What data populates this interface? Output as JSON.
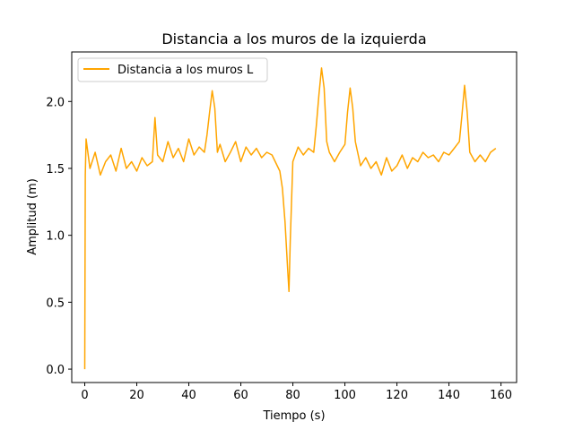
{
  "chart_data": {
    "type": "line",
    "title": "Distancia a los muros de la izquierda",
    "xlabel": "Tiempo (s)",
    "ylabel": "Amplitud (m)",
    "xlim": [
      -5,
      166
    ],
    "ylim": [
      -0.1,
      2.37
    ],
    "xticks": [
      0,
      20,
      40,
      60,
      80,
      100,
      120,
      140,
      160
    ],
    "yticks": [
      0.0,
      0.5,
      1.0,
      1.5,
      2.0
    ],
    "xtick_labels": [
      "0",
      "20",
      "40",
      "60",
      "80",
      "100",
      "120",
      "140",
      "160"
    ],
    "ytick_labels": [
      "0.0",
      "0.5",
      "1.0",
      "1.5",
      "2.0"
    ],
    "grid": false,
    "legend_position": "top-left",
    "series": [
      {
        "name": "Distancia a los muros L",
        "color": "#ffa500",
        "x": [
          0,
          0.2,
          0.5,
          2,
          4,
          6,
          8,
          10,
          12,
          14,
          16,
          18,
          20,
          22,
          24,
          26,
          27,
          28,
          30,
          32,
          34,
          36,
          38,
          40,
          42,
          44,
          46,
          47,
          48,
          49,
          50,
          51,
          52,
          54,
          56,
          58,
          60,
          62,
          64,
          66,
          68,
          70,
          72,
          74,
          75,
          76,
          77,
          78,
          78.5,
          79,
          80,
          82,
          84,
          86,
          88,
          89,
          90,
          91,
          92,
          93,
          94,
          96,
          98,
          100,
          101,
          102,
          103,
          104,
          106,
          108,
          110,
          112,
          114,
          116,
          118,
          120,
          122,
          124,
          126,
          128,
          130,
          132,
          134,
          136,
          138,
          140,
          142,
          144,
          145,
          146,
          147,
          148,
          150,
          152,
          154,
          156,
          158
        ],
        "y": [
          0.0,
          1.45,
          1.72,
          1.5,
          1.62,
          1.45,
          1.55,
          1.6,
          1.48,
          1.65,
          1.5,
          1.55,
          1.48,
          1.58,
          1.52,
          1.55,
          1.88,
          1.6,
          1.55,
          1.7,
          1.58,
          1.65,
          1.55,
          1.72,
          1.6,
          1.66,
          1.62,
          1.75,
          1.92,
          2.08,
          1.95,
          1.62,
          1.68,
          1.55,
          1.62,
          1.7,
          1.55,
          1.66,
          1.6,
          1.65,
          1.58,
          1.62,
          1.6,
          1.52,
          1.48,
          1.35,
          1.1,
          0.75,
          0.58,
          0.95,
          1.55,
          1.66,
          1.6,
          1.65,
          1.62,
          1.82,
          2.05,
          2.25,
          2.1,
          1.7,
          1.62,
          1.55,
          1.62,
          1.68,
          1.92,
          2.1,
          1.95,
          1.7,
          1.52,
          1.58,
          1.5,
          1.55,
          1.45,
          1.58,
          1.48,
          1.52,
          1.6,
          1.5,
          1.58,
          1.55,
          1.62,
          1.58,
          1.6,
          1.55,
          1.62,
          1.6,
          1.65,
          1.7,
          1.9,
          2.12,
          1.92,
          1.62,
          1.55,
          1.6,
          1.55,
          1.62,
          1.65
        ]
      }
    ]
  }
}
